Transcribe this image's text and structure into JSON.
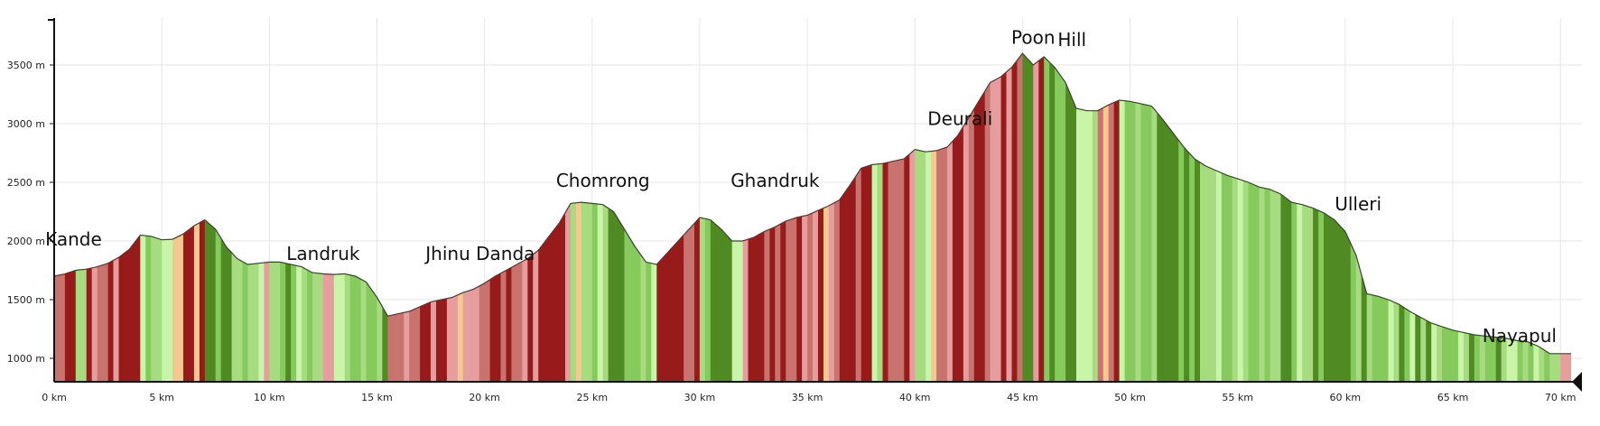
{
  "chart_data": {
    "type": "area",
    "title": "",
    "xlabel": "",
    "ylabel": "",
    "xlim": [
      0,
      71
    ],
    "ylim": [
      800,
      3900
    ],
    "grid": true,
    "x_ticks": [
      "0 km",
      "5 km",
      "10 km",
      "15 km",
      "20 km",
      "25 km",
      "30 km",
      "35 km",
      "40 km",
      "45 km",
      "50 km",
      "55 km",
      "60 km",
      "65 km",
      "70 km"
    ],
    "x_tick_values": [
      0,
      5,
      10,
      15,
      20,
      25,
      30,
      35,
      40,
      45,
      50,
      55,
      60,
      65,
      70
    ],
    "y_ticks": [
      "1000 m",
      "1500 m",
      "2000 m",
      "2500 m",
      "3000 m",
      "3500 m"
    ],
    "y_tick_values": [
      1000,
      1500,
      2000,
      2500,
      3000,
      3500
    ],
    "profile": {
      "x": [
        0,
        0.5,
        1,
        1.5,
        2,
        2.5,
        3,
        3.5,
        4,
        4.5,
        5,
        5.5,
        6,
        6.5,
        7,
        7.5,
        8,
        8.5,
        9,
        9.5,
        10,
        10.5,
        11,
        11.5,
        12,
        12.5,
        13,
        13.5,
        14,
        14.5,
        15,
        15.5,
        16,
        16.5,
        17,
        17.5,
        18,
        18.5,
        19,
        19.5,
        20,
        20.5,
        21,
        21.5,
        22,
        22.5,
        23,
        23.5,
        24,
        24.5,
        25,
        25.5,
        26,
        26.5,
        27,
        27.5,
        28,
        28.5,
        29,
        29.5,
        30,
        30.5,
        31,
        31.5,
        32,
        32.5,
        33,
        33.5,
        34,
        34.5,
        35,
        35.5,
        36,
        36.5,
        37,
        37.5,
        38,
        38.5,
        39,
        39.5,
        40,
        40.5,
        41,
        41.5,
        42,
        42.5,
        43,
        43.5,
        44,
        44.5,
        45,
        45.5,
        46,
        46.5,
        47,
        47.5,
        48,
        48.5,
        49,
        49.5,
        50,
        50.5,
        51,
        51.5,
        52,
        52.5,
        53,
        53.5,
        54,
        54.5,
        55,
        55.5,
        56,
        56.5,
        57,
        57.5,
        58,
        58.5,
        59,
        59.5,
        60,
        60.5,
        61,
        61.5,
        62,
        62.5,
        63,
        63.5,
        64,
        64.5,
        65,
        65.5,
        66,
        66.5,
        67,
        67.5,
        68,
        68.5,
        69,
        69.5,
        70,
        70.5
      ],
      "y": [
        1700,
        1720,
        1750,
        1760,
        1780,
        1810,
        1860,
        1930,
        2050,
        2040,
        2010,
        2015,
        2060,
        2130,
        2180,
        2100,
        1950,
        1850,
        1800,
        1810,
        1820,
        1820,
        1800,
        1780,
        1730,
        1720,
        1715,
        1720,
        1700,
        1650,
        1520,
        1360,
        1380,
        1400,
        1440,
        1480,
        1500,
        1520,
        1560,
        1590,
        1640,
        1700,
        1750,
        1800,
        1850,
        1920,
        2040,
        2160,
        2320,
        2330,
        2320,
        2310,
        2250,
        2100,
        1950,
        1820,
        1800,
        1900,
        2000,
        2100,
        2200,
        2180,
        2100,
        2000,
        2000,
        2030,
        2080,
        2120,
        2170,
        2200,
        2220,
        2260,
        2300,
        2350,
        2480,
        2620,
        2650,
        2660,
        2680,
        2700,
        2780,
        2760,
        2770,
        2800,
        2900,
        3050,
        3200,
        3350,
        3400,
        3480,
        3600,
        3500,
        3570,
        3480,
        3350,
        3130,
        3110,
        3110,
        3160,
        3200,
        3190,
        3170,
        3150,
        3040,
        2920,
        2800,
        2700,
        2640,
        2600,
        2560,
        2530,
        2500,
        2460,
        2440,
        2400,
        2330,
        2310,
        2280,
        2240,
        2180,
        2080,
        1880,
        1550,
        1530,
        1500,
        1460,
        1400,
        1350,
        1300,
        1270,
        1240,
        1220,
        1200,
        1190,
        1180,
        1170,
        1150,
        1140,
        1100,
        1040,
        1040,
        1040
      ]
    },
    "segment_colors": [
      "#981b1b",
      "#c9736f",
      "#e59e9d",
      "#4f8a22",
      "#86c95c",
      "#a6db80",
      "#c8f5a8",
      "#f4c890"
    ],
    "annotations": [
      {
        "text": "Kande",
        "x": 0.9,
        "y": 1960
      },
      {
        "text": "Landruk",
        "x": 12.5,
        "y": 1840
      },
      {
        "text": "Jhinu Danda",
        "x": 19.8,
        "y": 1840
      },
      {
        "text": "Chomrong",
        "x": 25.5,
        "y": 2460
      },
      {
        "text": "Ghandruk",
        "x": 33.5,
        "y": 2460
      },
      {
        "text": "Deurali",
        "x": 42.1,
        "y": 2990
      },
      {
        "text": "Poon",
        "x": 45.5,
        "y": 3680
      },
      {
        "text": "Hill",
        "x": 47.3,
        "y": 3660
      },
      {
        "text": "Ulleri",
        "x": 60.6,
        "y": 2260
      },
      {
        "text": "Nayapul",
        "x": 68.1,
        "y": 1140
      }
    ]
  }
}
